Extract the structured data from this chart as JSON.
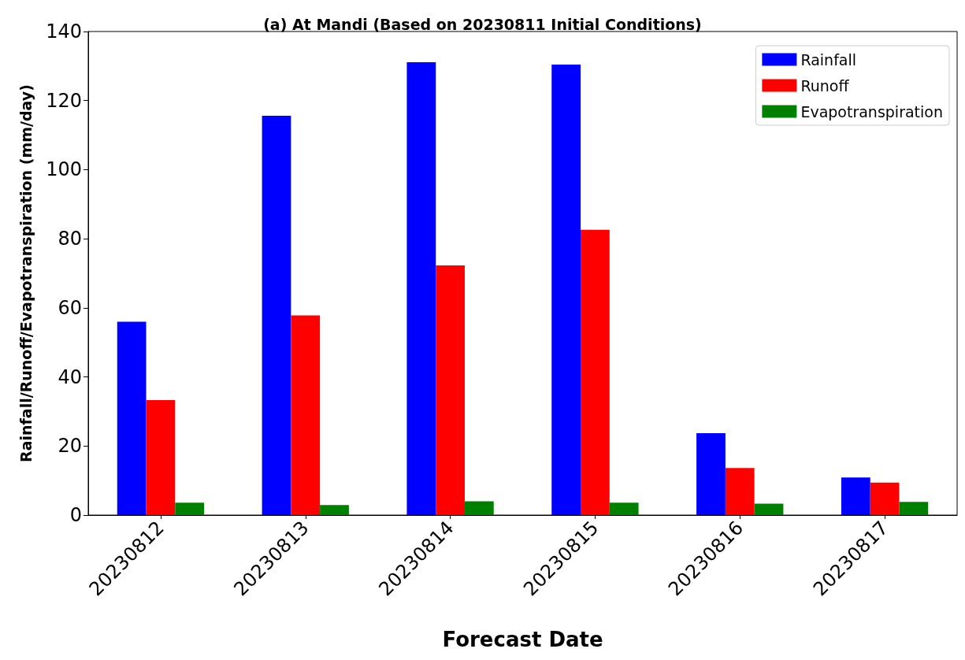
{
  "chart_data": {
    "type": "bar",
    "title": "(a) At Mandi (Based on 20230811 Initial Conditions)",
    "xlabel": "Forecast Date",
    "ylabel": "Rainfall/Runoff/Evapotranspiration (mm/day)",
    "categories": [
      "20230812",
      "20230813",
      "20230814",
      "20230815",
      "20230816",
      "20230817"
    ],
    "series": [
      {
        "name": "Rainfall",
        "color": "#0000ff",
        "values": [
          56,
          115.6,
          131.1,
          130.4,
          23.7,
          10.9
        ]
      },
      {
        "name": "Runoff",
        "color": "#ff0000",
        "values": [
          33.3,
          57.8,
          72.3,
          82.6,
          13.6,
          9.4
        ]
      },
      {
        "name": "Evapotranspiration",
        "color": "#008000",
        "values": [
          3.6,
          2.9,
          4.0,
          3.6,
          3.3,
          3.8
        ]
      }
    ],
    "ylim": [
      0,
      140
    ],
    "yticks": [
      0,
      20,
      40,
      60,
      80,
      100,
      120,
      140
    ],
    "grid": false,
    "legend": "top right"
  }
}
